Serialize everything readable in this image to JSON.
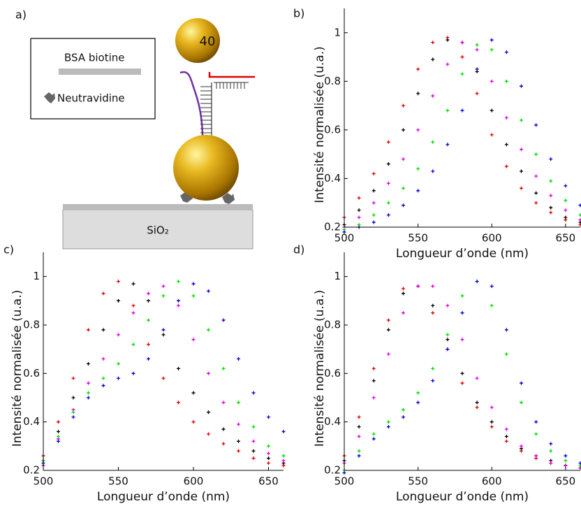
{
  "diagram": {
    "panel": "a)",
    "legend": [
      "BSA biotine",
      "Neutravidine"
    ],
    "particle": "40",
    "substrate": "SiO₂"
  },
  "chart_data": [
    {
      "type": "scatter",
      "panel": "b)",
      "xlabel": "Longueur d’onde (nm)",
      "ylabel": "Intensité normalisée (u.a.)",
      "xlim": [
        500,
        660
      ],
      "ylim": [
        0.2,
        1.1
      ],
      "xticks": [
        500,
        550,
        600,
        650
      ],
      "yticks": [
        0.2,
        0.4,
        0.6,
        0.8,
        1
      ],
      "x": [
        500,
        510,
        520,
        530,
        540,
        550,
        560,
        570,
        580,
        590,
        600,
        610,
        620,
        630,
        640,
        650,
        660
      ],
      "series": [
        {
          "color": "#e00000",
          "values": [
            0.24,
            0.32,
            0.42,
            0.55,
            0.7,
            0.85,
            0.96,
            0.98,
            0.9,
            0.75,
            0.58,
            0.45,
            0.36,
            0.3,
            0.26,
            0.23,
            0.21
          ]
        },
        {
          "color": "#000000",
          "values": [
            0.21,
            0.27,
            0.35,
            0.46,
            0.6,
            0.75,
            0.89,
            0.97,
            0.96,
            0.84,
            0.68,
            0.54,
            0.43,
            0.34,
            0.28,
            0.24,
            0.22
          ]
        },
        {
          "color": "#e000e0",
          "values": [
            0.2,
            0.24,
            0.3,
            0.38,
            0.48,
            0.6,
            0.74,
            0.87,
            0.96,
            0.93,
            0.8,
            0.65,
            0.52,
            0.41,
            0.33,
            0.27,
            0.23
          ]
        },
        {
          "color": "#00dd00",
          "values": [
            0.19,
            0.21,
            0.25,
            0.3,
            0.36,
            0.44,
            0.55,
            0.68,
            0.83,
            0.95,
            0.93,
            0.8,
            0.64,
            0.5,
            0.39,
            0.31,
            0.25
          ]
        },
        {
          "color": "#0000d0",
          "values": [
            0.18,
            0.2,
            0.22,
            0.25,
            0.29,
            0.35,
            0.43,
            0.54,
            0.68,
            0.85,
            0.97,
            0.92,
            0.78,
            0.62,
            0.48,
            0.37,
            0.29
          ]
        }
      ]
    },
    {
      "type": "scatter",
      "panel": "c)",
      "xlabel": "Longueur d’onde (nm)",
      "ylabel": "Intensité normalisée (u.a.)",
      "xlim": [
        500,
        660
      ],
      "ylim": [
        0.2,
        1.1
      ],
      "xticks": [
        500,
        550,
        600,
        650
      ],
      "yticks": [
        0.2,
        0.4,
        0.6,
        0.8,
        1
      ],
      "x": [
        500,
        510,
        520,
        530,
        540,
        550,
        560,
        570,
        580,
        590,
        600,
        610,
        620,
        630,
        640,
        650,
        660
      ],
      "series": [
        {
          "color": "#e00000",
          "values": [
            0.26,
            0.4,
            0.58,
            0.78,
            0.93,
            0.98,
            0.88,
            0.72,
            0.58,
            0.48,
            0.4,
            0.35,
            0.31,
            0.28,
            0.25,
            0.23,
            0.22
          ]
        },
        {
          "color": "#000000",
          "values": [
            0.24,
            0.36,
            0.5,
            0.64,
            0.78,
            0.9,
            0.97,
            0.9,
            0.76,
            0.62,
            0.52,
            0.44,
            0.37,
            0.32,
            0.28,
            0.25,
            0.23
          ]
        },
        {
          "color": "#e000e0",
          "values": [
            0.22,
            0.33,
            0.45,
            0.56,
            0.66,
            0.76,
            0.85,
            0.93,
            0.96,
            0.88,
            0.74,
            0.6,
            0.48,
            0.39,
            0.32,
            0.27,
            0.24
          ]
        },
        {
          "color": "#00dd00",
          "values": [
            0.24,
            0.34,
            0.44,
            0.52,
            0.58,
            0.64,
            0.72,
            0.82,
            0.92,
            0.98,
            0.92,
            0.78,
            0.62,
            0.48,
            0.38,
            0.3,
            0.26
          ]
        },
        {
          "color": "#0000d0",
          "values": [
            0.23,
            0.32,
            0.42,
            0.5,
            0.55,
            0.58,
            0.6,
            0.66,
            0.78,
            0.9,
            0.97,
            0.94,
            0.82,
            0.66,
            0.52,
            0.42,
            0.36
          ]
        }
      ]
    },
    {
      "type": "scatter",
      "panel": "d)",
      "xlabel": "Longueur d’onde (nm)",
      "ylabel": "Intensité normalisée (u.a.)",
      "xlim": [
        500,
        660
      ],
      "ylim": [
        0.2,
        1.1
      ],
      "xticks": [
        500,
        550,
        600,
        650
      ],
      "yticks": [
        0.2,
        0.4,
        0.6,
        0.8,
        1
      ],
      "x": [
        500,
        510,
        520,
        530,
        540,
        550,
        560,
        570,
        580,
        590,
        600,
        610,
        620,
        630,
        640,
        650,
        660
      ],
      "series": [
        {
          "color": "#e00000",
          "values": [
            0.26,
            0.42,
            0.62,
            0.82,
            0.95,
            0.96,
            0.85,
            0.7,
            0.56,
            0.46,
            0.38,
            0.32,
            0.28,
            0.25,
            0.23,
            0.22,
            0.21
          ]
        },
        {
          "color": "#000000",
          "values": [
            0.24,
            0.38,
            0.57,
            0.78,
            0.93,
            0.96,
            0.88,
            0.74,
            0.6,
            0.48,
            0.4,
            0.34,
            0.29,
            0.26,
            0.24,
            0.22,
            0.21
          ]
        },
        {
          "color": "#e000e0",
          "values": [
            0.23,
            0.34,
            0.5,
            0.68,
            0.85,
            0.96,
            0.96,
            0.88,
            0.74,
            0.58,
            0.46,
            0.37,
            0.3,
            0.26,
            0.23,
            0.22,
            0.21
          ]
        },
        {
          "color": "#00dd00",
          "values": [
            0.2,
            0.28,
            0.35,
            0.4,
            0.45,
            0.52,
            0.62,
            0.76,
            0.92,
            0.98,
            0.88,
            0.68,
            0.48,
            0.35,
            0.28,
            0.24,
            0.22
          ]
        },
        {
          "color": "#0000d0",
          "values": [
            0.19,
            0.26,
            0.33,
            0.38,
            0.42,
            0.48,
            0.57,
            0.7,
            0.85,
            0.98,
            0.96,
            0.78,
            0.56,
            0.4,
            0.31,
            0.26,
            0.23
          ]
        }
      ]
    }
  ]
}
